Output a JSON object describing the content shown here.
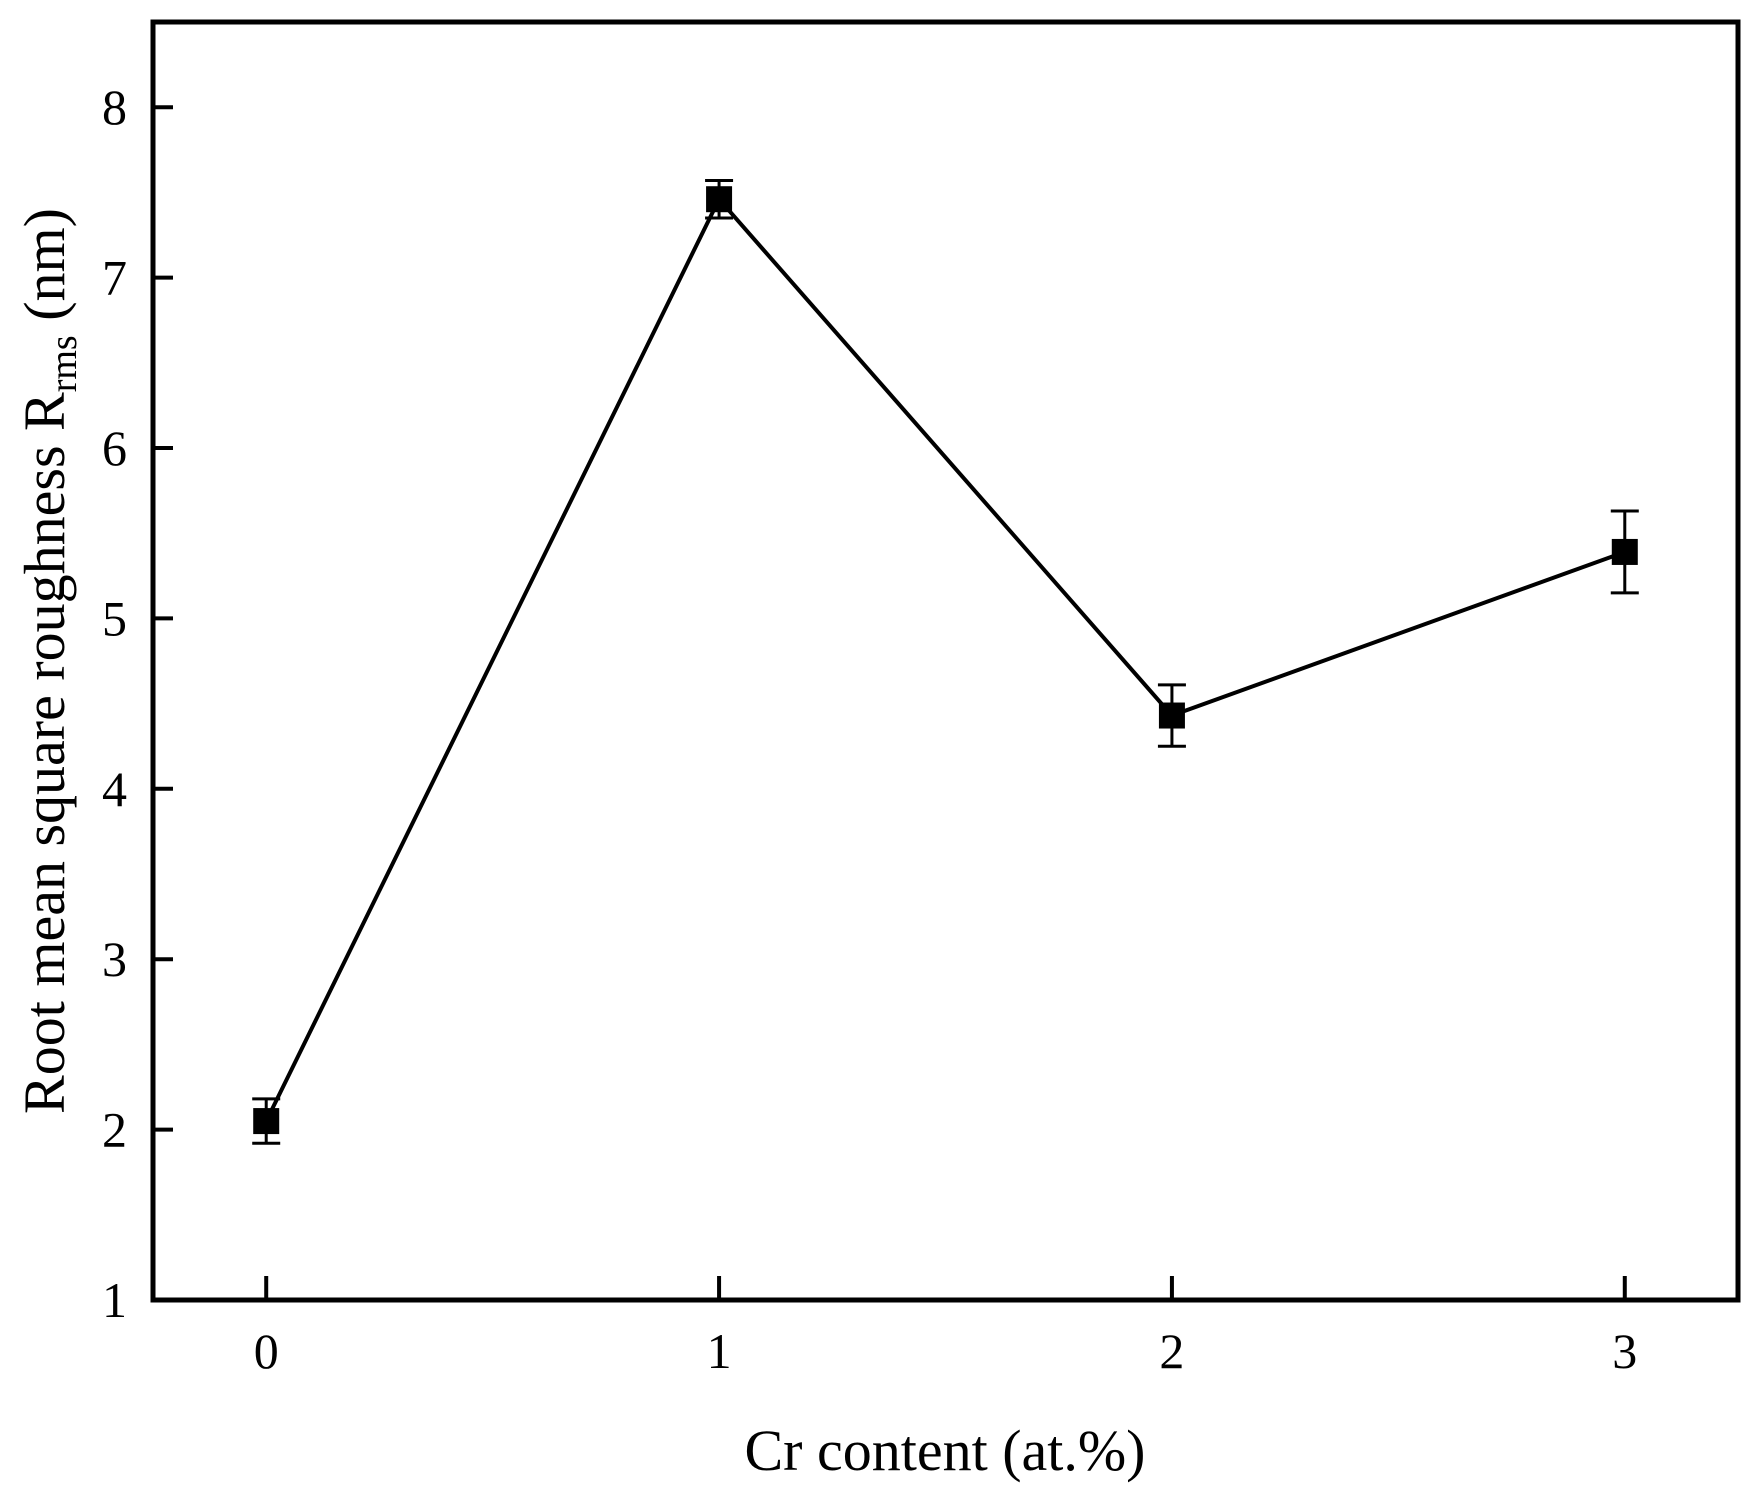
{
  "chart_data": {
    "type": "line",
    "xlabel": "Cr content (at.%)",
    "ylabel": {
      "main": "Root mean square roughness R",
      "subscript": "rms",
      "unit": " (nm)"
    },
    "x": [
      0,
      1,
      2,
      3
    ],
    "xticks": [
      0,
      1,
      2,
      3
    ],
    "xlim": [
      -0.25,
      3.25
    ],
    "ylim": [
      1,
      8.5
    ],
    "yticks": [
      1,
      2,
      3,
      4,
      5,
      6,
      7,
      8
    ],
    "series": [
      {
        "values": [
          2.05,
          7.46,
          4.43,
          5.39
        ],
        "errors": [
          0.13,
          0.11,
          0.18,
          0.24
        ],
        "marker": "square",
        "color": "#000000"
      }
    ],
    "grid": false,
    "legend": "none"
  }
}
